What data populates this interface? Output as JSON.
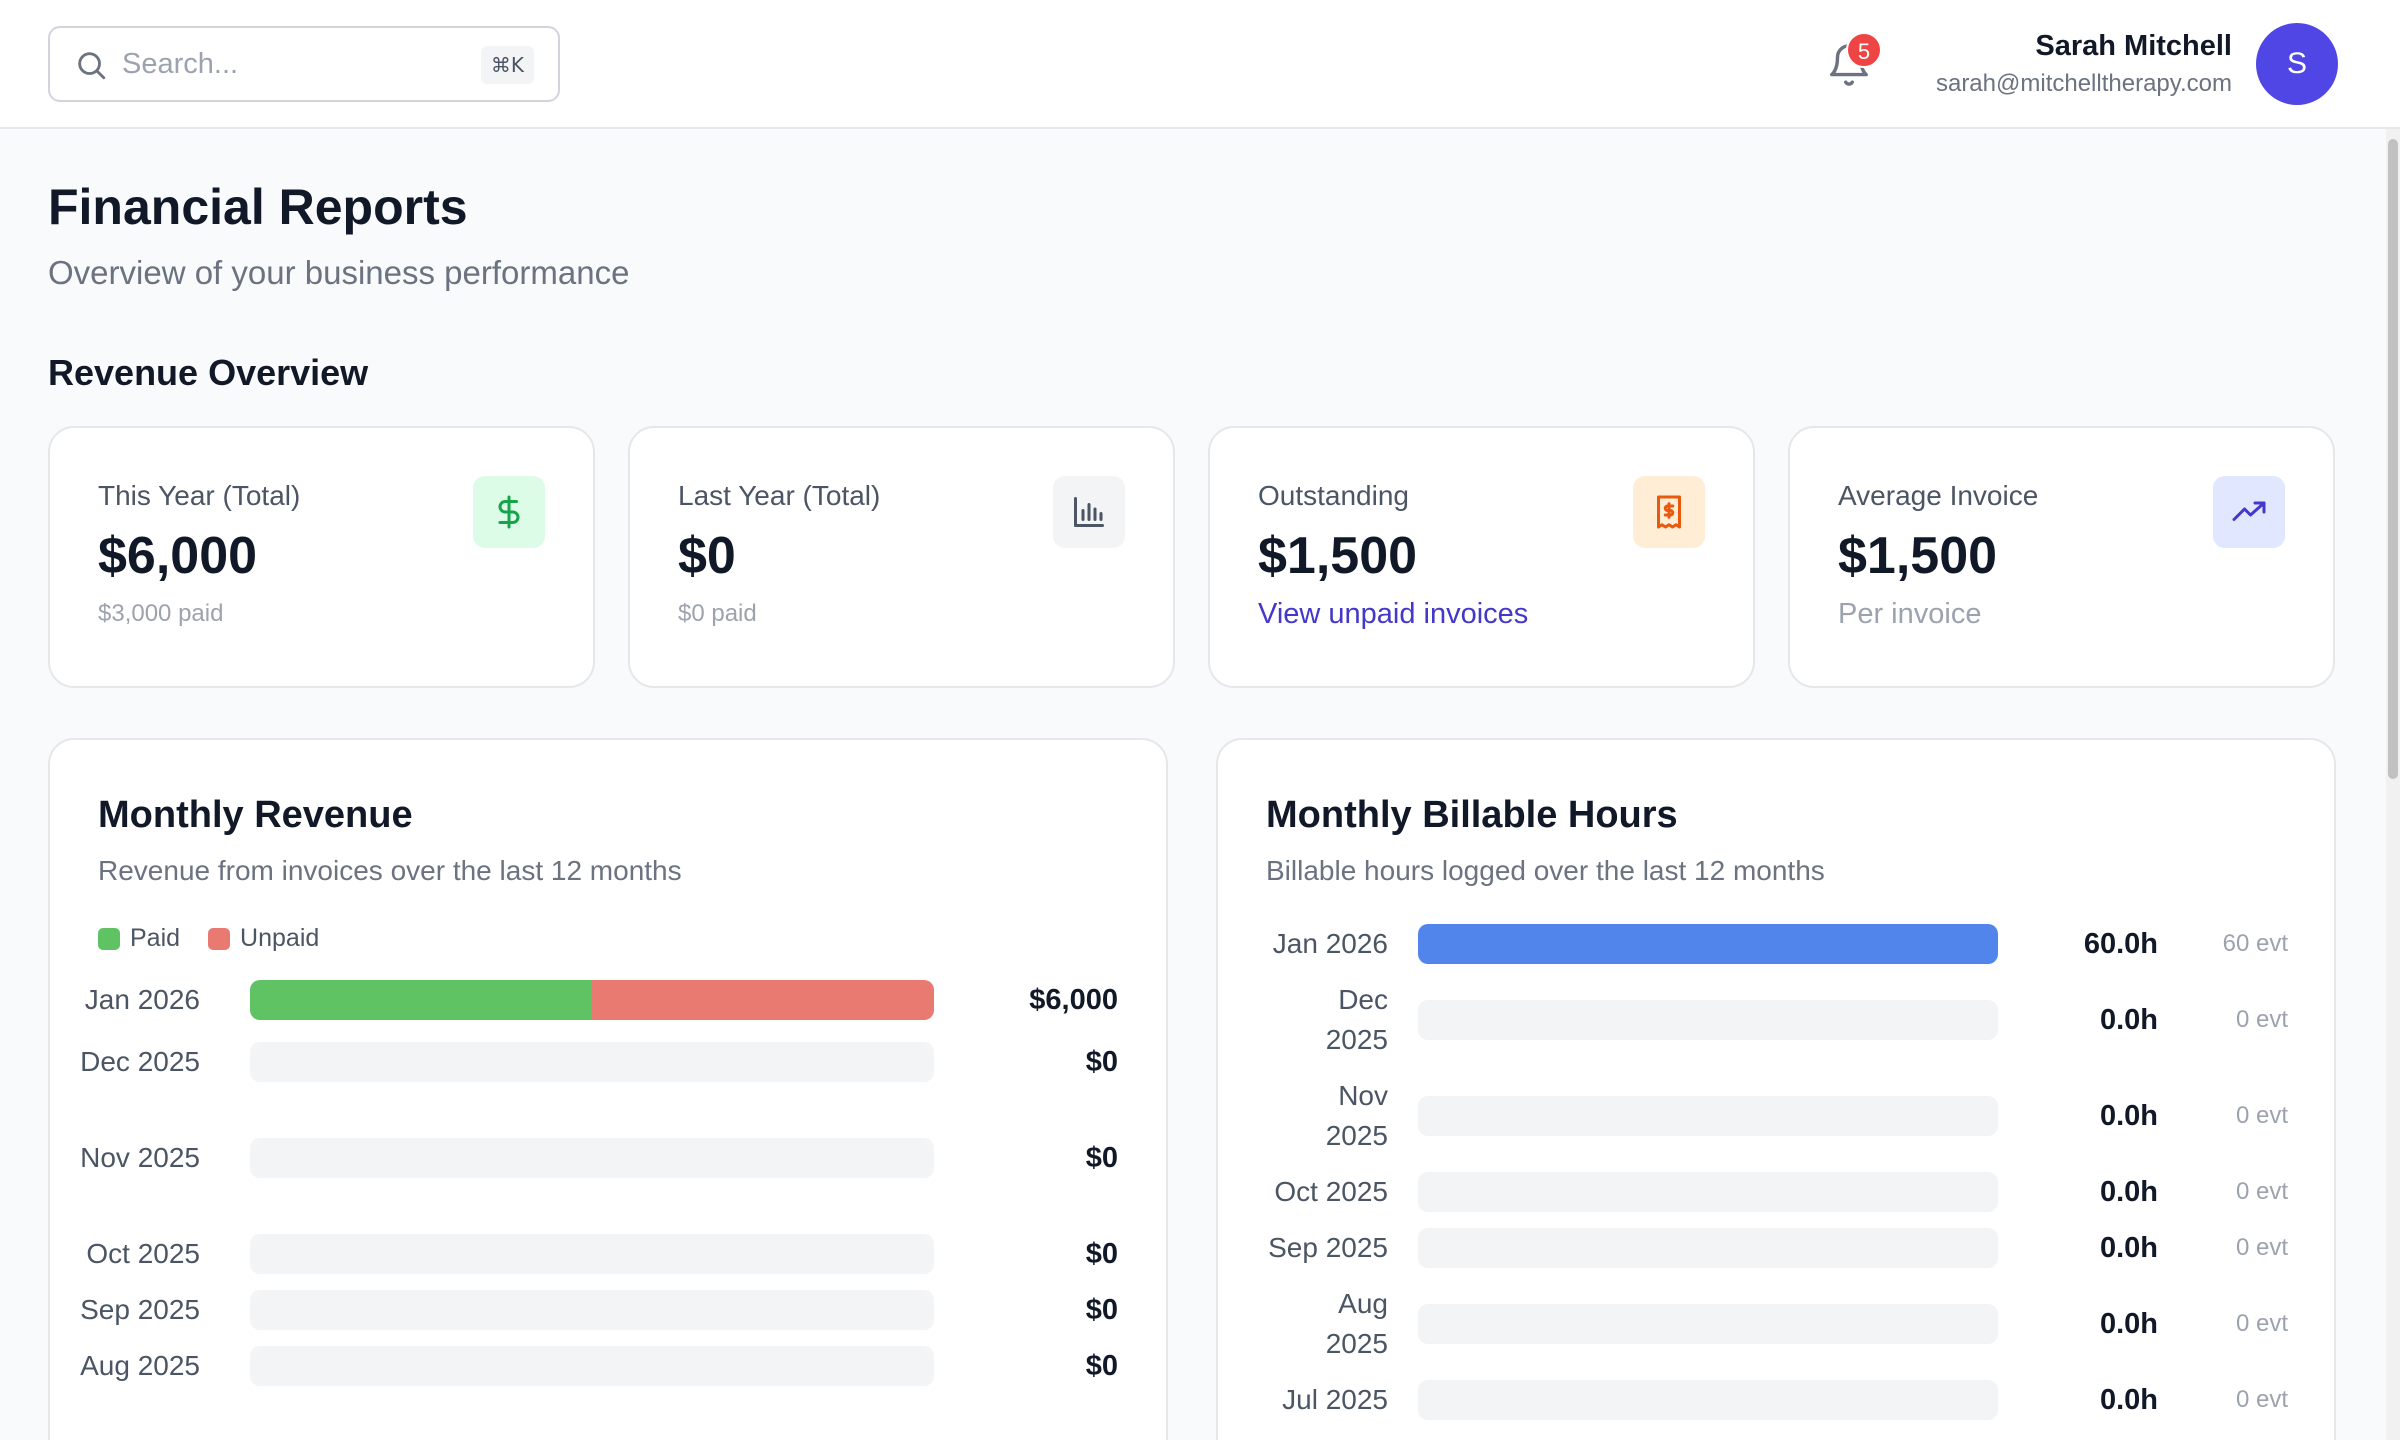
{
  "header": {
    "search_placeholder": "Search...",
    "search_shortcut": "⌘K",
    "notification_count": "5",
    "user_name": "Sarah Mitchell",
    "user_email": "sarah@mitchelltherapy.com",
    "avatar_initial": "S"
  },
  "page": {
    "title": "Financial Reports",
    "subtitle": "Overview of your business performance",
    "section_title": "Revenue Overview"
  },
  "stats": [
    {
      "label": "This Year (Total)",
      "value": "$6,000",
      "foot": "$3,000 paid",
      "icon": "dollar-icon",
      "icon_bg": "#dcfce7",
      "icon_color": "#16a34a"
    },
    {
      "label": "Last Year (Total)",
      "value": "$0",
      "foot": "$0 paid",
      "icon": "bar-chart-icon",
      "icon_bg": "#f3f4f6",
      "icon_color": "#4b5563"
    },
    {
      "label": "Outstanding",
      "value": "$1,500",
      "link": "View unpaid invoices",
      "icon": "receipt-icon",
      "icon_bg": "#ffedd5",
      "icon_color": "#ea580c"
    },
    {
      "label": "Average Invoice",
      "value": "$1,500",
      "foot": "Per invoice",
      "icon": "trending-up-icon",
      "icon_bg": "#e0e7ff",
      "icon_color": "#4338ca"
    }
  ],
  "revenue_chart": {
    "title": "Monthly Revenue",
    "subtitle": "Revenue from invoices over the last 12 months",
    "legend": [
      {
        "name": "Paid",
        "color": "#5fc263"
      },
      {
        "name": "Unpaid",
        "color": "#e97a72"
      }
    ]
  },
  "hours_chart": {
    "title": "Monthly Billable Hours",
    "subtitle": "Billable hours logged over the last 12 months",
    "bar_color": "#5285ec"
  },
  "chart_data": [
    {
      "type": "bar",
      "title": "Monthly Revenue",
      "categories": [
        "Jan 2026",
        "Dec 2025",
        "Nov 2025",
        "Oct 2025",
        "Sep 2025",
        "Aug 2025"
      ],
      "series": [
        {
          "name": "Paid",
          "values": [
            3000,
            0,
            0,
            0,
            0,
            0
          ]
        },
        {
          "name": "Unpaid",
          "values": [
            3000,
            0,
            0,
            0,
            0,
            0
          ]
        }
      ],
      "totals": [
        "$6,000",
        "$0",
        "$0",
        "$0",
        "$0",
        "$0"
      ],
      "max": 6000
    },
    {
      "type": "bar",
      "title": "Monthly Billable Hours",
      "categories": [
        "Jan 2026",
        "Dec 2025",
        "Nov 2025",
        "Oct 2025",
        "Sep 2025",
        "Aug 2025",
        "Jul 2025"
      ],
      "values": [
        60,
        0,
        0,
        0,
        0,
        0,
        0
      ],
      "value_labels": [
        "60.0h",
        "0.0h",
        "0.0h",
        "0.0h",
        "0.0h",
        "0.0h",
        "0.0h"
      ],
      "events": [
        "60 evt",
        "0 evt",
        "0 evt",
        "0 evt",
        "0 evt",
        "0 evt",
        "0 evt"
      ],
      "max": 60
    }
  ]
}
